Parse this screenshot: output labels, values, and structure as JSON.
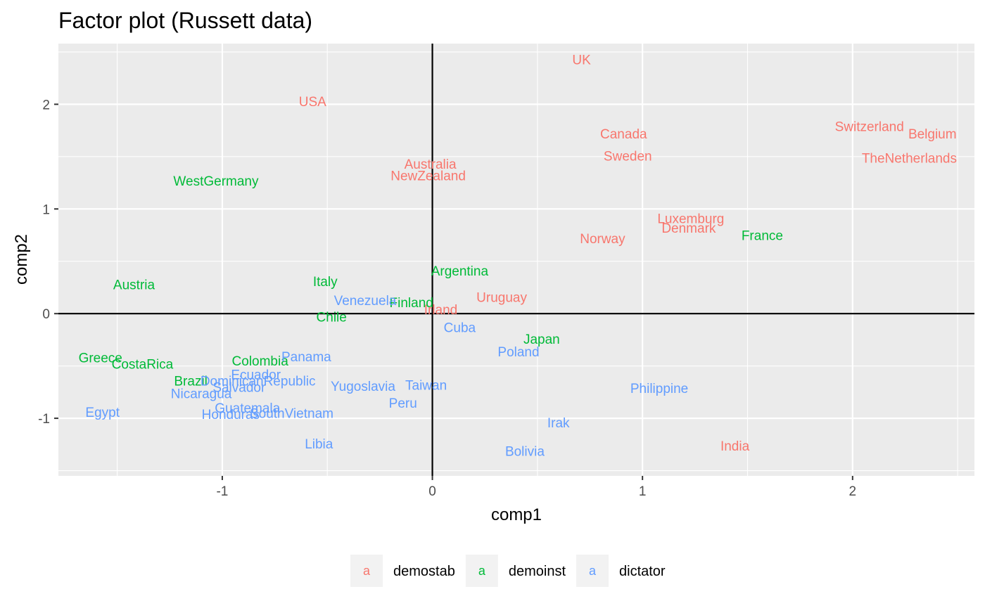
{
  "chart_data": {
    "type": "scatter",
    "title": "Factor plot (Russett data)",
    "xlabel": "comp1",
    "ylabel": "comp2",
    "xlim": [
      -1.78,
      2.58
    ],
    "ylim": [
      -1.55,
      2.58
    ],
    "x_ticks": [
      -1,
      0,
      1,
      2
    ],
    "y_ticks": [
      -1,
      0,
      1,
      2
    ],
    "grid": true,
    "reference_lines": {
      "x": 0,
      "y": 0
    },
    "legend_position": "bottom",
    "groups": [
      {
        "name": "demostab",
        "color": "#F8766D",
        "key_glyph": "a"
      },
      {
        "name": "demoinst",
        "color": "#00BA38",
        "key_glyph": "a"
      },
      {
        "name": "dictator",
        "color": "#619CFF",
        "key_glyph": "a"
      }
    ],
    "points": [
      {
        "label": "UK",
        "group": "demostab",
        "x": 0.71,
        "y": 2.43
      },
      {
        "label": "USA",
        "group": "demostab",
        "x": -0.57,
        "y": 2.03
      },
      {
        "label": "Canada",
        "group": "demostab",
        "x": 0.91,
        "y": 1.72
      },
      {
        "label": "Sweden",
        "group": "demostab",
        "x": 0.93,
        "y": 1.51
      },
      {
        "label": "Switzerland",
        "group": "demostab",
        "x": 2.08,
        "y": 1.79
      },
      {
        "label": "Belgium",
        "group": "demostab",
        "x": 2.38,
        "y": 1.72
      },
      {
        "label": "TheNetherlands",
        "group": "demostab",
        "x": 2.27,
        "y": 1.49
      },
      {
        "label": "Australia",
        "group": "demostab",
        "x": -0.01,
        "y": 1.43
      },
      {
        "label": "NewZealand",
        "group": "demostab",
        "x": -0.02,
        "y": 1.32
      },
      {
        "label": "Luxemburg",
        "group": "demostab",
        "x": 1.23,
        "y": 0.91
      },
      {
        "label": "Denmark",
        "group": "demostab",
        "x": 1.22,
        "y": 0.82
      },
      {
        "label": "Norway",
        "group": "demostab",
        "x": 0.81,
        "y": 0.72
      },
      {
        "label": "Uruguay",
        "group": "demostab",
        "x": 0.33,
        "y": 0.16
      },
      {
        "label": "Irland",
        "group": "demostab",
        "x": 0.04,
        "y": 0.04
      },
      {
        "label": "India",
        "group": "demostab",
        "x": 1.44,
        "y": -1.26
      },
      {
        "label": "WestGermany",
        "group": "demoinst",
        "x": -1.03,
        "y": 1.27
      },
      {
        "label": "France",
        "group": "demoinst",
        "x": 1.57,
        "y": 0.75
      },
      {
        "label": "Austria",
        "group": "demoinst",
        "x": -1.42,
        "y": 0.28
      },
      {
        "label": "Italy",
        "group": "demoinst",
        "x": -0.51,
        "y": 0.31
      },
      {
        "label": "Argentina",
        "group": "demoinst",
        "x": 0.13,
        "y": 0.41
      },
      {
        "label": "Finland",
        "group": "demoinst",
        "x": -0.1,
        "y": 0.11
      },
      {
        "label": "Chile",
        "group": "demoinst",
        "x": -0.48,
        "y": -0.03
      },
      {
        "label": "Japan",
        "group": "demoinst",
        "x": 0.52,
        "y": -0.24
      },
      {
        "label": "Greece",
        "group": "demoinst",
        "x": -1.58,
        "y": -0.42
      },
      {
        "label": "CostaRica",
        "group": "demoinst",
        "x": -1.38,
        "y": -0.48
      },
      {
        "label": "Colombia",
        "group": "demoinst",
        "x": -0.82,
        "y": -0.45
      },
      {
        "label": "Brazil",
        "group": "demoinst",
        "x": -1.15,
        "y": -0.64
      },
      {
        "label": "Venezuela",
        "group": "dictator",
        "x": -0.32,
        "y": 0.13
      },
      {
        "label": "Cuba",
        "group": "dictator",
        "x": 0.13,
        "y": -0.13
      },
      {
        "label": "Poland",
        "group": "dictator",
        "x": 0.41,
        "y": -0.36
      },
      {
        "label": "Panama",
        "group": "dictator",
        "x": -0.6,
        "y": -0.41
      },
      {
        "label": "Ecuador",
        "group": "dictator",
        "x": -0.84,
        "y": -0.58
      },
      {
        "label": "DominicanRepublic",
        "group": "dictator",
        "x": -0.83,
        "y": -0.64
      },
      {
        "label": "Salvador",
        "group": "dictator",
        "x": -0.92,
        "y": -0.7
      },
      {
        "label": "Nicaragua",
        "group": "dictator",
        "x": -1.1,
        "y": -0.76
      },
      {
        "label": "Yugoslavia",
        "group": "dictator",
        "x": -0.33,
        "y": -0.69
      },
      {
        "label": "Taiwan",
        "group": "dictator",
        "x": -0.03,
        "y": -0.68
      },
      {
        "label": "Philippine",
        "group": "dictator",
        "x": 1.08,
        "y": -0.71
      },
      {
        "label": "Peru",
        "group": "dictator",
        "x": -0.14,
        "y": -0.85
      },
      {
        "label": "Guatemala",
        "group": "dictator",
        "x": -0.88,
        "y": -0.9
      },
      {
        "label": "Honduras",
        "group": "dictator",
        "x": -0.96,
        "y": -0.96
      },
      {
        "label": "SouthVietnam",
        "group": "dictator",
        "x": -0.67,
        "y": -0.95
      },
      {
        "label": "Egypt",
        "group": "dictator",
        "x": -1.57,
        "y": -0.94
      },
      {
        "label": "Irak",
        "group": "dictator",
        "x": 0.6,
        "y": -1.04
      },
      {
        "label": "Libia",
        "group": "dictator",
        "x": -0.54,
        "y": -1.24
      },
      {
        "label": "Bolivia",
        "group": "dictator",
        "x": 0.44,
        "y": -1.31
      }
    ]
  }
}
